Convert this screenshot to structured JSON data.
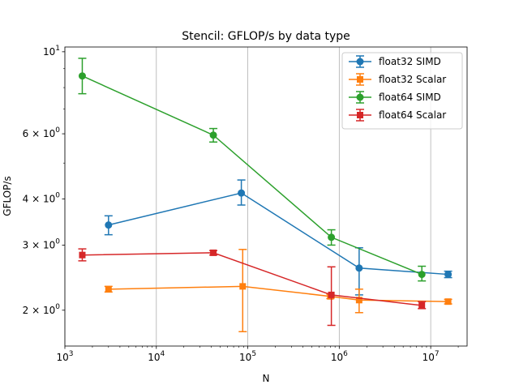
{
  "chart_data": {
    "type": "line",
    "title": "Stencil: GFLOP/s by data type",
    "xlabel": "N",
    "ylabel": "GFLOP/s",
    "xscale": "log",
    "yscale": "log",
    "xlim": [
      1000,
      25000000
    ],
    "ylim": [
      1.6,
      10.3
    ],
    "grid": "x-major",
    "legend_position": "top-right",
    "x_ticks": [
      {
        "value": 1000,
        "label": "10^3"
      },
      {
        "value": 10000,
        "label": "10^4"
      },
      {
        "value": 100000,
        "label": "10^5"
      },
      {
        "value": 1000000,
        "label": "10^6"
      },
      {
        "value": 10000000,
        "label": "10^7"
      }
    ],
    "y_ticks": [
      {
        "value": 2,
        "label": "2 × 10^0"
      },
      {
        "value": 3,
        "label": "3 × 10^0"
      },
      {
        "value": 4,
        "label": "4 × 10^0"
      },
      {
        "value": 6,
        "label": "6 × 10^0"
      },
      {
        "value": 10,
        "label": "10^1"
      }
    ],
    "series": [
      {
        "name": "float32 SIMD",
        "color": "#1f77b4",
        "marker": "circle",
        "points": [
          {
            "x": 3000,
            "y": 3.4,
            "err_low": 3.2,
            "err_high": 3.6
          },
          {
            "x": 85000,
            "y": 4.15,
            "err_low": 3.85,
            "err_high": 4.5
          },
          {
            "x": 1650000,
            "y": 2.6,
            "err_low": 2.2,
            "err_high": 2.95
          },
          {
            "x": 15500000,
            "y": 2.5,
            "err_low": 2.45,
            "err_high": 2.55
          }
        ]
      },
      {
        "name": "float32 Scalar",
        "color": "#ff7f0e",
        "marker": "square",
        "points": [
          {
            "x": 3000,
            "y": 2.28,
            "err_low": 2.24,
            "err_high": 2.32
          },
          {
            "x": 88000,
            "y": 2.32,
            "err_low": 1.75,
            "err_high": 2.92
          },
          {
            "x": 800000,
            "y": 2.18,
            "err_low": 2.15,
            "err_high": 2.21
          },
          {
            "x": 1650000,
            "y": 2.13,
            "err_low": 1.97,
            "err_high": 2.28
          },
          {
            "x": 15500000,
            "y": 2.11,
            "err_low": 2.08,
            "err_high": 2.14
          }
        ]
      },
      {
        "name": "float64 SIMD",
        "color": "#2ca02c",
        "marker": "circle",
        "points": [
          {
            "x": 1550,
            "y": 8.6,
            "err_low": 7.7,
            "err_high": 9.6
          },
          {
            "x": 42000,
            "y": 5.95,
            "err_low": 5.7,
            "err_high": 6.2
          },
          {
            "x": 820000,
            "y": 3.15,
            "err_low": 3.0,
            "err_high": 3.3
          },
          {
            "x": 8000000,
            "y": 2.5,
            "err_low": 2.4,
            "err_high": 2.63
          }
        ]
      },
      {
        "name": "float64 Scalar",
        "color": "#d62728",
        "marker": "square",
        "points": [
          {
            "x": 1550,
            "y": 2.82,
            "err_low": 2.72,
            "err_high": 2.93
          },
          {
            "x": 42000,
            "y": 2.86,
            "err_low": 2.82,
            "err_high": 2.9
          },
          {
            "x": 820000,
            "y": 2.2,
            "err_low": 1.82,
            "err_high": 2.62
          },
          {
            "x": 8000000,
            "y": 2.06,
            "err_low": 2.02,
            "err_high": 2.11
          }
        ]
      }
    ]
  }
}
